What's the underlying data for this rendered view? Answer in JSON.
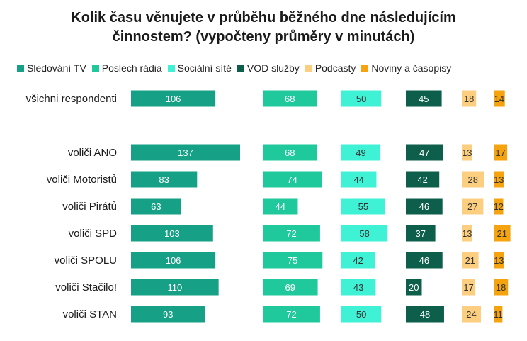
{
  "chart_data": {
    "type": "bar",
    "title_lines": [
      "Kolik času věnujete v průběhu běžného dne následujícím",
      "činnostem? (vypočteny průměry v minutách)"
    ],
    "categories": [
      "všichni respondenti",
      "voliči ANO",
      "voliči Motoristů",
      "voliči Pirátů",
      "voliči SPD",
      "voliči SPOLU",
      "voliči Stačilo!",
      "voliči STAN"
    ],
    "series": [
      {
        "name": "Sledování TV",
        "color": "#16a085",
        "text_color": "#ffffff",
        "values": [
          106,
          137,
          83,
          63,
          103,
          106,
          110,
          93
        ]
      },
      {
        "name": "Poslech rádia",
        "color": "#1fc99b",
        "text_color": "#ffffff",
        "values": [
          68,
          68,
          74,
          44,
          72,
          75,
          69,
          72
        ]
      },
      {
        "name": "Sociální sítě",
        "color": "#3ff2d5",
        "text_color": "#333333",
        "values": [
          50,
          49,
          44,
          55,
          58,
          42,
          43,
          50
        ]
      },
      {
        "name": "VOD služby",
        "color": "#0d5e4a",
        "text_color": "#ffffff",
        "values": [
          45,
          47,
          42,
          46,
          37,
          46,
          20,
          48
        ]
      },
      {
        "name": "Podcasty",
        "color": "#fccf80",
        "text_color": "#333333",
        "values": [
          18,
          13,
          28,
          27,
          13,
          21,
          17,
          24
        ]
      },
      {
        "name": "Noviny a časopisy",
        "color": "#f5a30f",
        "text_color": "#333333",
        "values": [
          14,
          17,
          13,
          12,
          21,
          13,
          18,
          11
        ]
      }
    ]
  }
}
